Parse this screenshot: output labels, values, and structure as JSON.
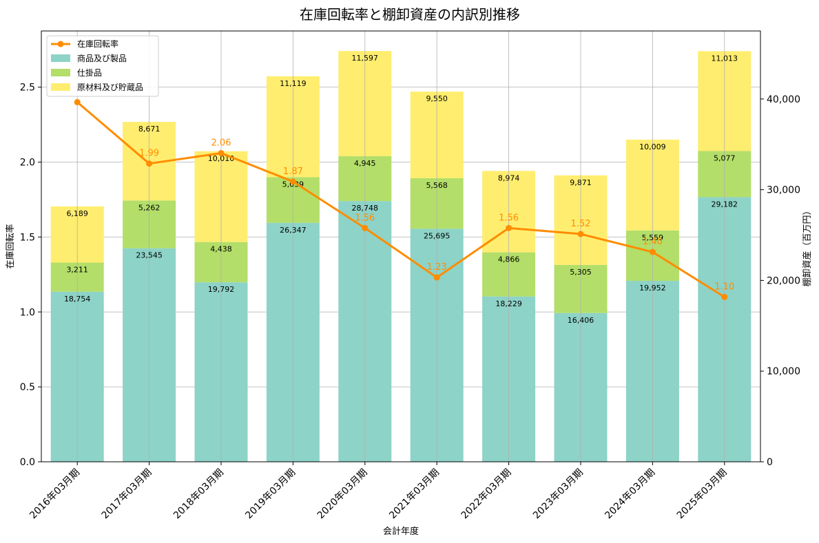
{
  "colors": {
    "goods": "#8dd3c7",
    "wip": "#b3de69",
    "raw": "#ffed6f",
    "rate": "#ff8c00",
    "grid": "#b0b0b0"
  },
  "chart_data": {
    "type": "bar+line",
    "title": "在庫回転率と棚卸資産の内訳別推移",
    "xlabel": "会計年度",
    "ylabel_left": "在庫回転率",
    "ylabel_right": "棚卸資産（百万円）",
    "ylim_left": [
      0,
      2.875
    ],
    "ylim_right": [
      0,
      47500
    ],
    "yticks_left": [
      "0.0",
      "0.5",
      "1.0",
      "1.5",
      "2.0",
      "2.5"
    ],
    "yticks_left_values": [
      0,
      0.5,
      1.0,
      1.5,
      2.0,
      2.5
    ],
    "yticks_right": [
      "0",
      "10,000",
      "20,000",
      "30,000",
      "40,000"
    ],
    "yticks_right_values": [
      0,
      10000,
      20000,
      30000,
      40000
    ],
    "categories": [
      "2016年03月期",
      "2017年03月期",
      "2018年03月期",
      "2019年03月期",
      "2020年03月期",
      "2021年03月期",
      "2022年03月期",
      "2023年03月期",
      "2024年03月期",
      "2025年03月期"
    ],
    "series": [
      {
        "name": "商品及び製品",
        "key": "goods",
        "values": [
          18754,
          23545,
          19792,
          26347,
          28748,
          25695,
          18229,
          16406,
          19952,
          29182
        ],
        "labels": [
          "18,754",
          "23,545",
          "19,792",
          "26,347",
          "28,748",
          "25,695",
          "18,229",
          "16,406",
          "19,952",
          "29,182"
        ]
      },
      {
        "name": "仕掛品",
        "key": "wip",
        "values": [
          3211,
          5262,
          4438,
          5039,
          4945,
          5568,
          4866,
          5305,
          5559,
          5077
        ],
        "labels": [
          "3,211",
          "5,262",
          "4,438",
          "5,039",
          "4,945",
          "5,568",
          "4,866",
          "5,305",
          "5,559",
          "5,077"
        ]
      },
      {
        "name": "原材料及び貯蔵品",
        "key": "raw",
        "values": [
          6189,
          8671,
          10010,
          11119,
          11597,
          9550,
          8974,
          9871,
          10009,
          11013
        ],
        "labels": [
          "6,189",
          "8,671",
          "10,010",
          "11,119",
          "11,597",
          "9,550",
          "8,974",
          "9,871",
          "10,009",
          "11,013"
        ]
      }
    ],
    "line": {
      "name": "在庫回転率",
      "values": [
        2.4,
        1.99,
        2.06,
        1.87,
        1.56,
        1.23,
        1.56,
        1.52,
        1.4,
        1.1
      ],
      "labels": [
        "",
        "1.99",
        "2.06",
        "1.87",
        "1.56",
        "1.23",
        "1.56",
        "1.52",
        "1.40",
        "1.10"
      ]
    },
    "legend": {
      "position": "top-left",
      "entries": [
        "在庫回転率",
        "商品及び製品",
        "仕掛品",
        "原材料及び貯蔵品"
      ]
    },
    "grid": true
  }
}
